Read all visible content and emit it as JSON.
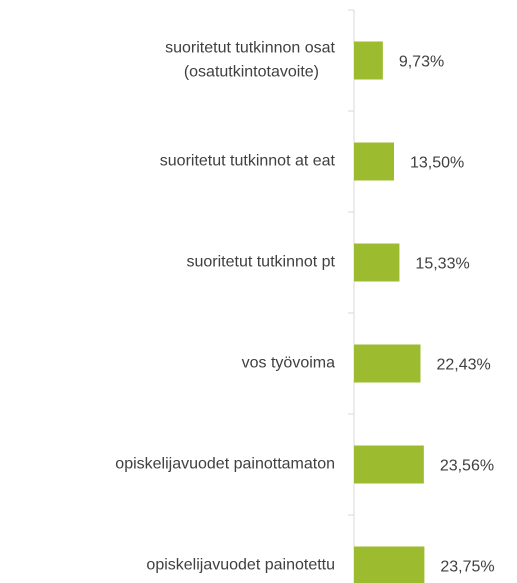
{
  "chart_data": {
    "type": "bar",
    "orientation": "horizontal",
    "categories": [
      "suoritetut tutkinnon osat\n(osatutkintotavoite)",
      "suoritetut tutkinnot at eat",
      "suoritetut tutkinnot pt",
      "vos työvoima",
      "opiskelijavuodet painottamaton",
      "opiskelijavuodet painotettu"
    ],
    "values": [
      9.73,
      13.5,
      15.33,
      22.43,
      23.56,
      23.75
    ],
    "value_labels": [
      "9,73%",
      "13,50%",
      "15,33%",
      "22,43%",
      "23,56%",
      "23,75%"
    ],
    "color": "#9cbb2e",
    "xlim": [
      0,
      55
    ]
  }
}
